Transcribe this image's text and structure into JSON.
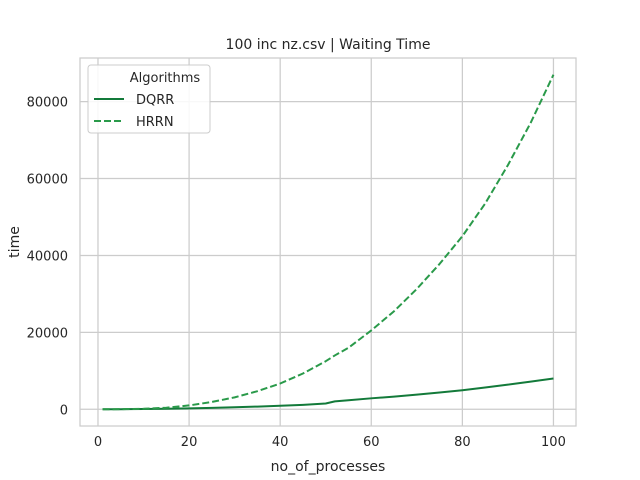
{
  "chart_data": {
    "type": "line",
    "title": "100 inc nz.csv | Waiting Time",
    "xlabel": "no_of_processes",
    "ylabel": "time",
    "xlim": [
      -3.95,
      104.95
    ],
    "ylim": [
      -4350,
      91350
    ],
    "xticks": [
      0,
      20,
      40,
      60,
      80,
      100
    ],
    "yticks": [
      0,
      20000,
      40000,
      60000,
      80000
    ],
    "x_tick_labels": [
      "0",
      "20",
      "40",
      "60",
      "80",
      "100"
    ],
    "y_tick_labels": [
      "0",
      "20000",
      "40000",
      "60000",
      "80000"
    ],
    "grid": true,
    "legend": {
      "title": "Algorithms",
      "placement": "top-left"
    },
    "x": [
      1,
      5,
      10,
      15,
      20,
      25,
      30,
      35,
      40,
      45,
      50,
      52,
      55,
      60,
      65,
      70,
      75,
      80,
      85,
      90,
      95,
      100
    ],
    "series": [
      {
        "name": "DQRR",
        "color": "#137a3a",
        "dash": "solid",
        "values": [
          0,
          20,
          60,
          130,
          230,
          360,
          520,
          700,
          900,
          1150,
          1500,
          2050,
          2350,
          2850,
          3300,
          3800,
          4350,
          4950,
          5650,
          6400,
          7200,
          8000
        ]
      },
      {
        "name": "HRRN",
        "color": "#2a9a4a",
        "dash": "dashed",
        "values": [
          0,
          30,
          120,
          400,
          1000,
          1900,
          3100,
          4700,
          6700,
          9300,
          12500,
          14000,
          16000,
          20500,
          25500,
          31300,
          37800,
          45000,
          53500,
          63500,
          74500,
          87000
        ]
      }
    ]
  }
}
